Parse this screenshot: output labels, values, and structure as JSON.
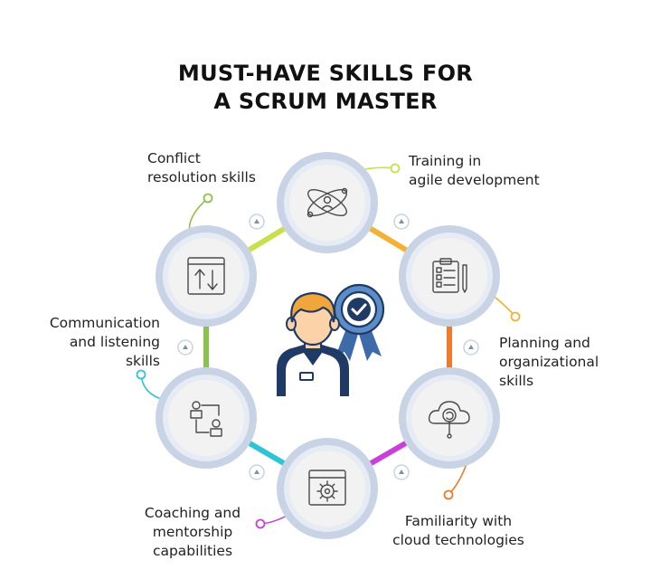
{
  "title": {
    "line1": "MUST-HAVE SKILLS FOR",
    "line2": "A SCRUM MASTER"
  },
  "central_figure": {
    "icon": "scrum-master-person-with-award-badge-icon"
  },
  "skills": [
    {
      "lines": [
        "Conflict",
        "resolution skills"
      ],
      "icon": "transfer-arrows-window-icon",
      "accent": "#8bc34a"
    },
    {
      "lines": [
        "Training in",
        "agile development"
      ],
      "icon": "atom-user-icon",
      "accent": "#c8e04a"
    },
    {
      "lines": [
        "Planning and",
        "organizational",
        "skills"
      ],
      "icon": "checklist-clipboard-icon",
      "accent": "#f2b233"
    },
    {
      "lines": [
        "Familiarity with",
        "cloud technologies"
      ],
      "icon": "cloud-search-icon",
      "accent": "#f07a2c"
    },
    {
      "lines": [
        "Coaching and",
        "mentorship",
        "capabilities"
      ],
      "icon": "gear-window-icon",
      "accent": "#c93fd8"
    },
    {
      "lines": [
        "Communication",
        "and listening",
        "skills"
      ],
      "icon": "user-flow-icon",
      "accent": "#2ec4d6"
    }
  ],
  "colors": {
    "ring": "#c8d3e6",
    "node_fill": "#f2f2f2",
    "icon_stroke": "#4a4a4a",
    "person_blue": "#203a66",
    "hair": "#f0a63c",
    "skin": "#fcd2a9",
    "badge_blue": "#5b8ec8"
  }
}
